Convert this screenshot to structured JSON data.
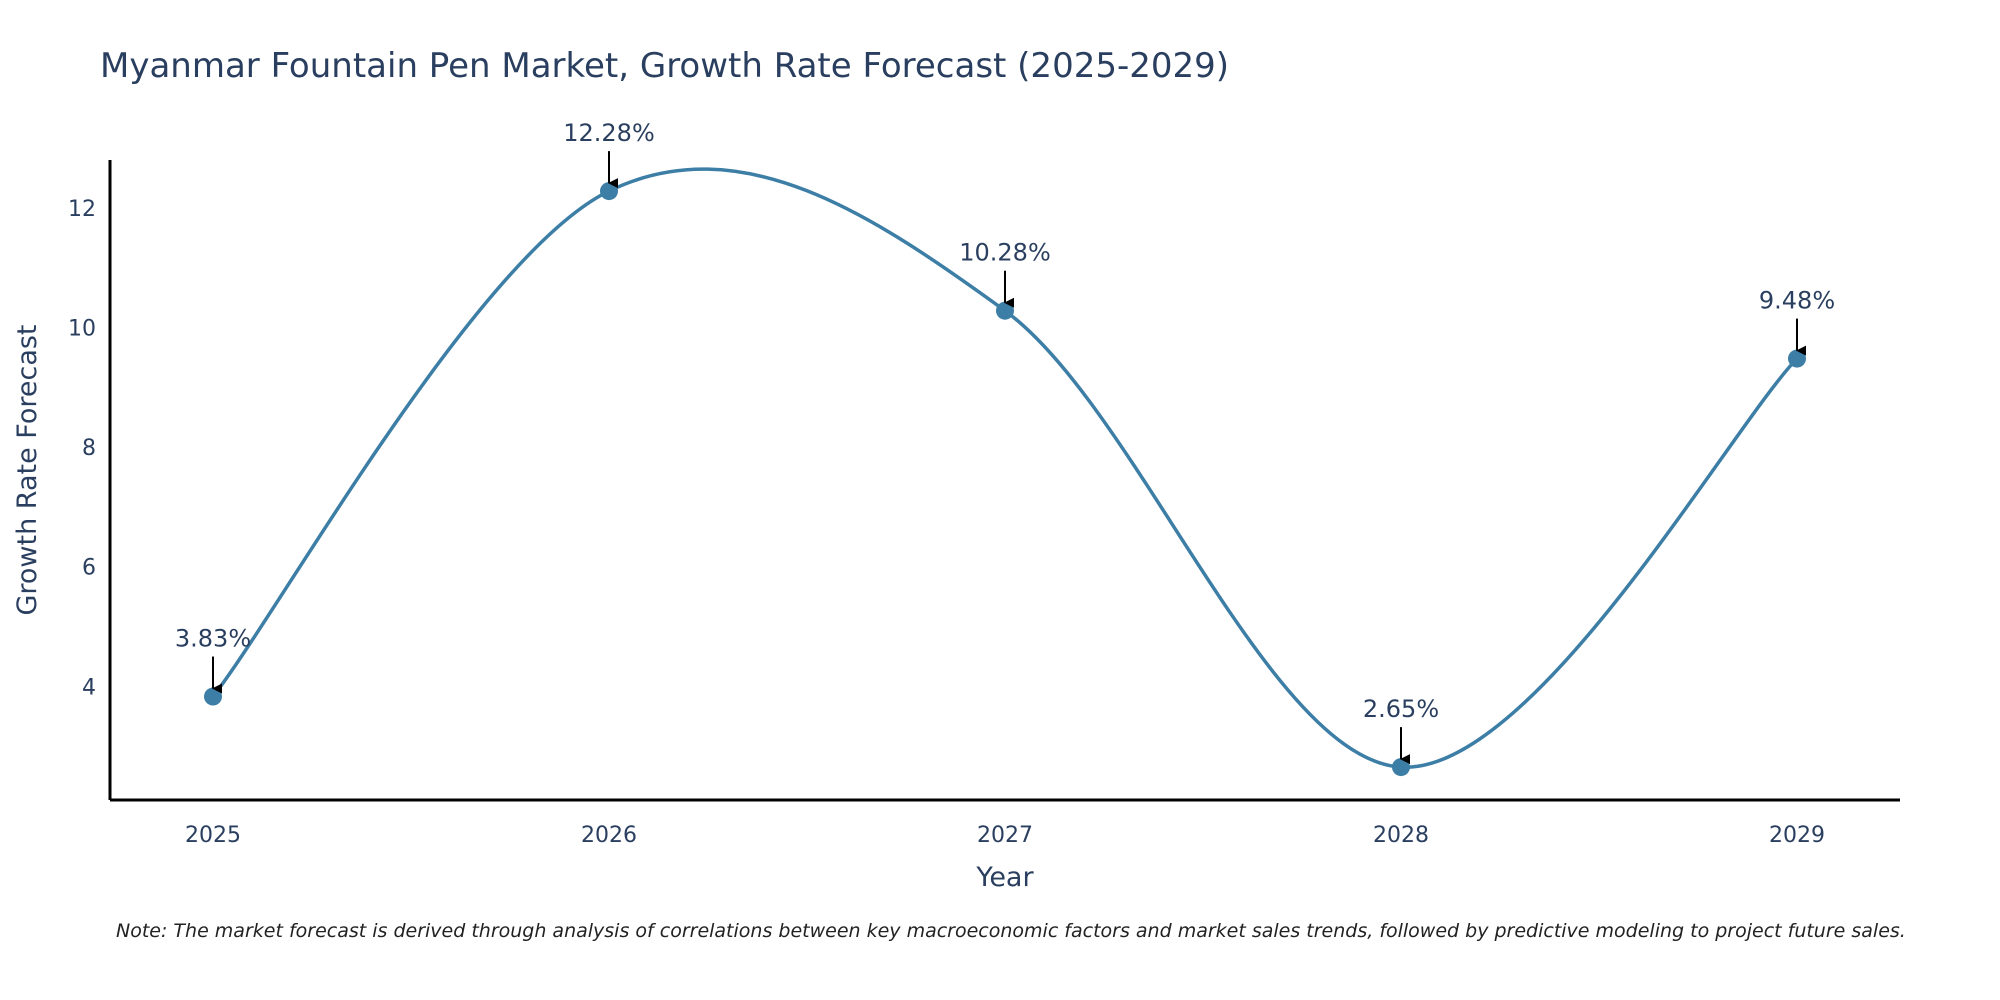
{
  "chart_data": {
    "type": "line",
    "title": "Myanmar Fountain Pen Market, Growth Rate Forecast (2025-2029)",
    "xlabel": "Year",
    "ylabel": "Growth Rate Forecast",
    "categories": [
      "2025",
      "2026",
      "2027",
      "2028",
      "2029"
    ],
    "series": [
      {
        "name": "Growth Rate Forecast",
        "values": [
          3.83,
          12.28,
          10.28,
          2.65,
          9.48
        ],
        "labels": [
          "3.83%",
          "12.28%",
          "10.28%",
          "2.65%",
          "9.48%"
        ]
      }
    ],
    "yticks": [
      4,
      6,
      8,
      10,
      12
    ],
    "ylim": [
      2.1,
      12.8
    ],
    "line_shape": "spline",
    "grid": false,
    "colors": {
      "line": "#3d7ea6",
      "marker": "#3d7ea6",
      "axis": "#000000",
      "text": "#2a3f5f"
    }
  },
  "footnote": "Note: The market forecast is derived through analysis of correlations between key macroeconomic factors and market sales trends, followed by predictive modeling to project future sales."
}
